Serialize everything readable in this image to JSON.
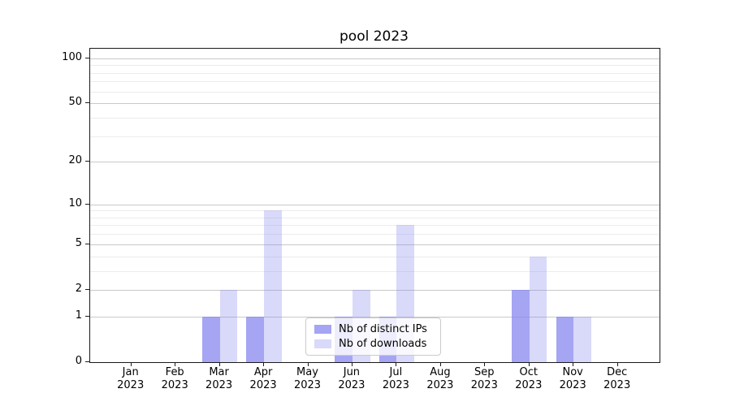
{
  "chart_data": {
    "type": "bar",
    "title": "pool 2023",
    "categories": [
      "Jan",
      "Feb",
      "Mar",
      "Apr",
      "May",
      "Jun",
      "Jul",
      "Aug",
      "Sep",
      "Oct",
      "Nov",
      "Dec"
    ],
    "category_year": "2023",
    "series": [
      {
        "name": "Nb of distinct IPs",
        "color": "rgba(130,130,240,0.72)",
        "values": [
          0,
          0,
          1,
          1,
          0,
          1,
          1,
          0,
          0,
          2,
          1,
          0
        ]
      },
      {
        "name": "Nb of downloads",
        "color": "rgba(130,130,240,0.30)",
        "values": [
          0,
          0,
          2,
          9,
          0,
          2,
          7,
          0,
          0,
          4,
          1,
          0
        ]
      }
    ],
    "yscale": "log1p",
    "ylim": [
      0,
      116
    ],
    "y_major_ticks": [
      0,
      1,
      2,
      5,
      10,
      20,
      50,
      100
    ],
    "y_minor_ticks": [
      3,
      4,
      6,
      7,
      8,
      9,
      30,
      40,
      60,
      70,
      80,
      90
    ],
    "grid": "horizontal",
    "legend": {
      "position": "lower-center-inside",
      "entries": [
        "Nb of distinct IPs",
        "Nb of downloads"
      ]
    },
    "colors": {
      "bar_base": "#8282f0",
      "grid_major": "#c9c9c9",
      "grid_minor": "#ececec",
      "spine": "#1a1a1a"
    }
  }
}
